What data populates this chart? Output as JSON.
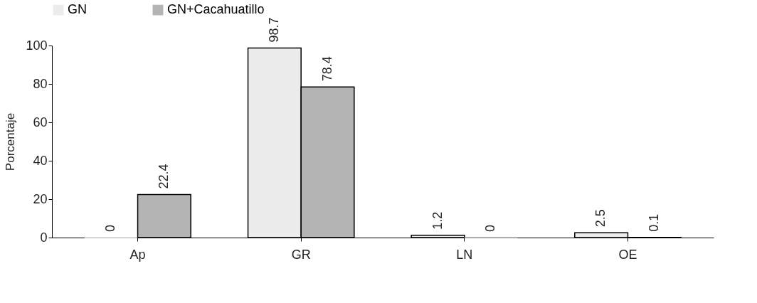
{
  "chart_data": {
    "type": "bar",
    "ylabel": "Porcentaje",
    "categories": [
      "Ap",
      "GR",
      "LN",
      "OE"
    ],
    "series": [
      {
        "name": "GN",
        "color": "#ececec",
        "values": [
          0,
          98.7,
          1.2,
          2.5
        ]
      },
      {
        "name": "GN+Cacahuatillo",
        "color": "#b4b4b4",
        "values": [
          22.4,
          78.4,
          0,
          0.1
        ]
      }
    ],
    "ylim": [
      0,
      100
    ],
    "yticks": [
      0,
      20,
      40,
      60,
      80,
      100
    ],
    "grid": false,
    "legend": "top",
    "data_labels": true
  }
}
